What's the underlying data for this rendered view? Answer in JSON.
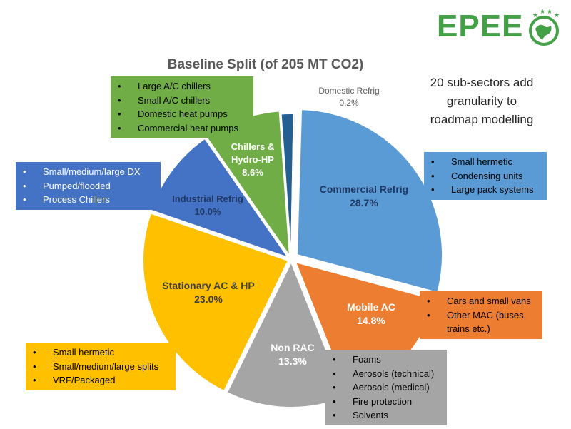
{
  "brand": {
    "logo_text": "EPEE",
    "logo_color": "#43a047"
  },
  "title": "Baseline Split  (of 205 MT CO2)",
  "note": "20 sub-sectors add granularity to roadmap modelling",
  "chart_data": {
    "type": "pie",
    "title": "Baseline Split  (of 205 MT CO2)",
    "unit": "%",
    "slices": [
      {
        "name": "Commercial Refrig",
        "value": 28.7,
        "label": "28.7%",
        "color": "#5b9bd5"
      },
      {
        "name": "Mobile AC",
        "value": 14.8,
        "label": "14.8%",
        "color": "#ed7d31"
      },
      {
        "name": "Non RAC",
        "value": 13.3,
        "label": "13.3%",
        "color": "#a5a5a5"
      },
      {
        "name": "Stationary AC & HP",
        "value": 23.0,
        "label": "23.0%",
        "color": "#ffc000"
      },
      {
        "name": "Industrial Refrig",
        "value": 10.0,
        "label": "10.0%",
        "color": "#4472c4"
      },
      {
        "name": "Chillers & Hydro-HP",
        "value": 8.6,
        "label": "8.6%",
        "color": "#70ad47"
      },
      {
        "name": "",
        "value": 1.4,
        "label": "",
        "color": "#255e91"
      },
      {
        "name": "Domestic Refrig",
        "value": 0.2,
        "label": "0.2%",
        "color": "#d9d9d9"
      }
    ]
  },
  "callouts": {
    "commercial": [
      "Small hermetic",
      "Condensing units",
      "Large pack systems"
    ],
    "mobile": [
      "Cars and small vans",
      "Other MAC (buses, trains etc.)"
    ],
    "nonrac": [
      "Foams",
      "Aerosols (technical)",
      "Aerosols (medical)",
      "Fire protection",
      "Solvents"
    ],
    "stationary": [
      "Small hermetic",
      "Small/medium/large splits",
      "VRF/Packaged"
    ],
    "industrial": [
      "Small/medium/large DX",
      "Pumped/flooded",
      "Process Chillers"
    ],
    "chillers": [
      "Large A/C chillers",
      "Small A/C chillers",
      "Domestic heat pumps",
      "Commercial heat pumps"
    ]
  }
}
